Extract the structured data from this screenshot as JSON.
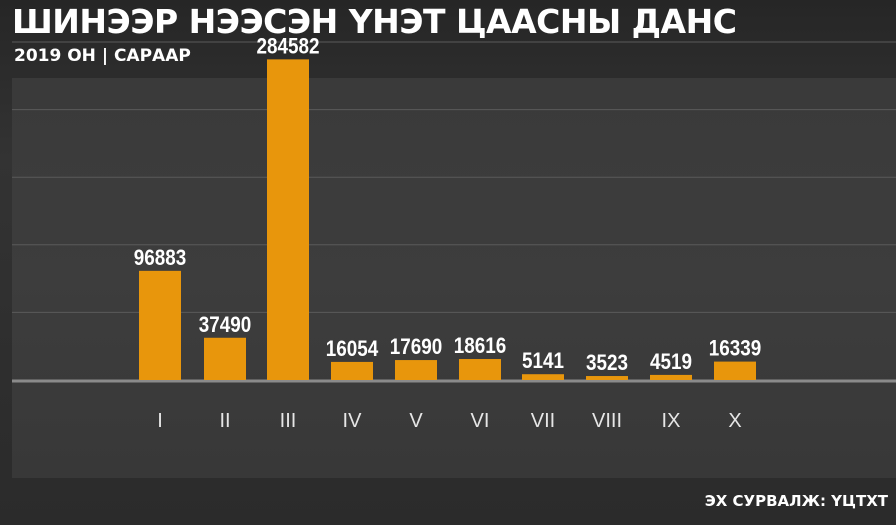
{
  "header": {
    "title": "ШИНЭЭР НЭЭСЭН ҮНЭТ ЦААСНЫ ДАНС",
    "subtitle": "2019 ОН | САРААР"
  },
  "footer": {
    "source": "ЭХ СУРВАЛЖ: ҮЦТХТ"
  },
  "colors": {
    "bar": "#e8960c",
    "grid": "#5a5a5a",
    "baseline": "#8a8a8a"
  },
  "chart_data": {
    "type": "bar",
    "title": "ШИНЭЭР НЭЭСЭН ҮНЭТ ЦААСНЫ ДАНС",
    "subtitle": "2019 ОН | САРААР",
    "categories": [
      "I",
      "II",
      "III",
      "IV",
      "V",
      "VI",
      "VII",
      "VIII",
      "IX",
      "X"
    ],
    "values": [
      96883,
      37490,
      284582,
      16054,
      17690,
      18616,
      5141,
      3523,
      4519,
      16339
    ],
    "ylim": [
      0,
      300000
    ],
    "grid": true,
    "legend": "none"
  }
}
